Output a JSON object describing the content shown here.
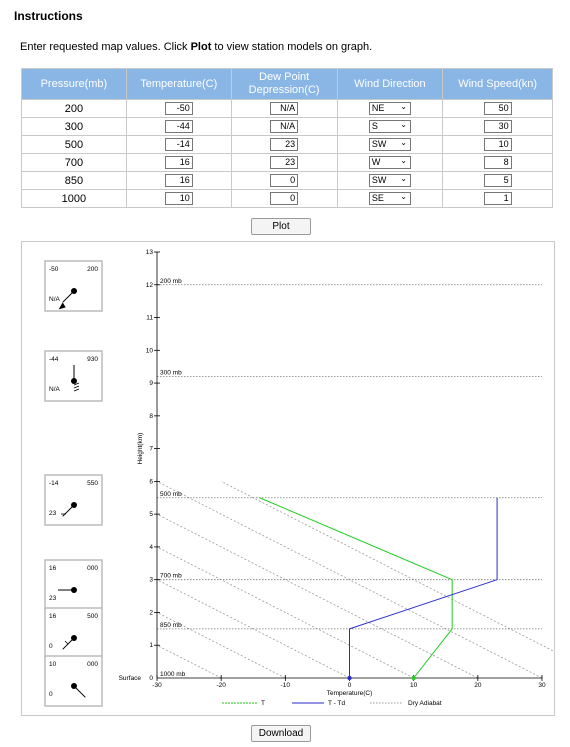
{
  "title": "Instructions",
  "instructions": {
    "pre": "Enter requested map values. Click ",
    "bold": "Plot",
    "post": " to view station models on graph."
  },
  "table": {
    "headers": [
      "Pressure(mb)",
      "Temperature(C)",
      "Dew Point Depression(C)",
      "Wind Direction",
      "Wind Speed(kn)"
    ],
    "rows": [
      {
        "pressure": "200",
        "temp": "-50",
        "dpd": "N/A",
        "dir": "NE",
        "speed": "50"
      },
      {
        "pressure": "300",
        "temp": "-44",
        "dpd": "N/A",
        "dir": "S",
        "speed": "30"
      },
      {
        "pressure": "500",
        "temp": "-14",
        "dpd": "23",
        "dir": "SW",
        "speed": "10"
      },
      {
        "pressure": "700",
        "temp": "16",
        "dpd": "23",
        "dir": "W",
        "speed": "8"
      },
      {
        "pressure": "850",
        "temp": "16",
        "dpd": "0",
        "dir": "SW",
        "speed": "5"
      },
      {
        "pressure": "1000",
        "temp": "10",
        "dpd": "0",
        "dir": "SE",
        "speed": "1"
      }
    ]
  },
  "buttons": {
    "plot": "Plot",
    "download": "Download"
  },
  "stations": [
    {
      "temp": "-50",
      "code": "200",
      "dew": "N/A"
    },
    {
      "temp": "-44",
      "code": "930",
      "dew": "N/A"
    },
    {
      "temp": "-14",
      "code": "550",
      "dew": "23"
    },
    {
      "temp": "16",
      "code": "000",
      "dew": "23"
    },
    {
      "temp": "16",
      "code": "500",
      "dew": "0"
    },
    {
      "temp": "10",
      "code": "000",
      "dew": "0"
    }
  ],
  "chart_data": {
    "type": "line",
    "xlabel": "Temperature(C)",
    "ylabel": "Height(km)",
    "xlim": [
      -30,
      30
    ],
    "ylim": [
      0,
      13
    ],
    "xticks": [
      "-30",
      "-20",
      "-10",
      "0",
      "10",
      "20",
      "30"
    ],
    "yticks": [
      "1",
      "2",
      "3",
      "4",
      "5",
      "6",
      "7",
      "8",
      "9",
      "10",
      "11",
      "12",
      "13"
    ],
    "surface_label": "Surface",
    "surface_tick": "0",
    "pressure_levels": [
      {
        "label": "1000 mb",
        "height": 0
      },
      {
        "label": "850 mb",
        "height": 1.5
      },
      {
        "label": "700 mb",
        "height": 3
      },
      {
        "label": "500 mb",
        "height": 5.5
      },
      {
        "label": "300 mb",
        "height": 9.2
      },
      {
        "label": "200 mb",
        "height": 12
      }
    ],
    "series": [
      {
        "name": "T",
        "color": "#22cc22",
        "points": [
          [
            10,
            0
          ],
          [
            16,
            1.5
          ],
          [
            16,
            3
          ],
          [
            -14,
            5.5
          ]
        ]
      },
      {
        "name": "T - Td",
        "color": "#2a2ad0",
        "points": [
          [
            0,
            0
          ],
          [
            0,
            1.5
          ],
          [
            23,
            3
          ],
          [
            23,
            5.5
          ]
        ]
      }
    ],
    "dry_adiabat_label": "Dry Adiabat",
    "dry_adiabat_color": "#9a9a9a"
  }
}
